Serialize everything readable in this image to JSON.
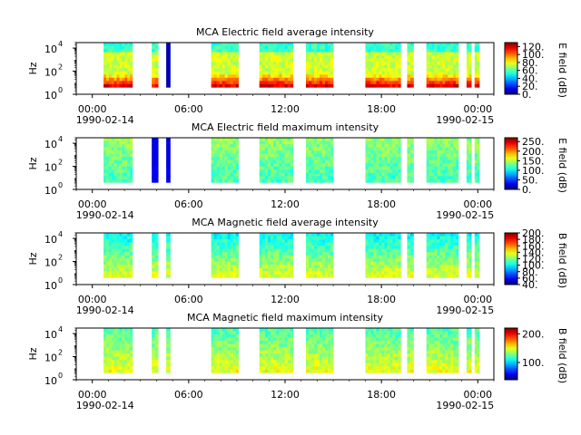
{
  "colors": {
    "axis": "#000000",
    "background": "#ffffff"
  },
  "chart_data": [
    {
      "type": "heatmap",
      "title": "MCA  Electric field average intensity",
      "ylabel": "Hz",
      "yscale": "log",
      "ylim": [
        1,
        30000
      ],
      "ytick_labels": [
        "10",
        "10",
        "10"
      ],
      "ytick_exponents": [
        "0",
        "2",
        "4"
      ],
      "xtick_labels": [
        "00:00",
        "06:00",
        "12:00",
        "18:00",
        "00:00"
      ],
      "x_start_date": "1990-02-14",
      "x_end_date": "1990-02-15",
      "colorbar_label": "E field (dB)",
      "colorbar_range": [
        0,
        130
      ],
      "colorbar_ticks": [
        "0.",
        "20.",
        "40.",
        "60.",
        "80.",
        "100.",
        "120."
      ],
      "colormap": "jet",
      "data_intervals_hours": [
        [
          0.7,
          2.5
        ],
        [
          3.7,
          4.1
        ],
        [
          4.6,
          4.85
        ],
        [
          7.4,
          9.1
        ],
        [
          10.4,
          12.5
        ],
        [
          13.3,
          15.0
        ],
        [
          17.0,
          19.2
        ],
        [
          19.6,
          20.0
        ],
        [
          20.8,
          22.8
        ],
        [
          23.3,
          23.6
        ],
        [
          23.8,
          24.1
        ]
      ],
      "dominant_levels": [
        110,
        75,
        65
      ]
    },
    {
      "type": "heatmap",
      "title": "MCA  Electric field maximum intensity",
      "ylabel": "Hz",
      "yscale": "log",
      "ylim": [
        1,
        30000
      ],
      "ytick_labels": [
        "10",
        "10",
        "10"
      ],
      "ytick_exponents": [
        "0",
        "2",
        "4"
      ],
      "xtick_labels": [
        "00:00",
        "06:00",
        "12:00",
        "18:00",
        "00:00"
      ],
      "x_start_date": "1990-02-14",
      "x_end_date": "1990-02-15",
      "colorbar_label": "E field (dB)",
      "colorbar_range": [
        0,
        270
      ],
      "colorbar_ticks": [
        "0.",
        "50.",
        "100.",
        "150.",
        "200.",
        "250."
      ],
      "colormap": "jet",
      "data_intervals_hours": [
        [
          0.7,
          2.5
        ],
        [
          3.7,
          4.1
        ],
        [
          4.6,
          4.85
        ],
        [
          7.4,
          9.1
        ],
        [
          10.4,
          12.5
        ],
        [
          13.3,
          15.0
        ],
        [
          17.0,
          19.2
        ],
        [
          19.6,
          20.0
        ],
        [
          20.8,
          22.8
        ],
        [
          23.3,
          23.6
        ],
        [
          23.8,
          24.1
        ]
      ],
      "dominant_levels": [
        140,
        130,
        120
      ]
    },
    {
      "type": "heatmap",
      "title": "MCA  Magnetic field average intensity",
      "ylabel": "Hz",
      "yscale": "log",
      "ylim": [
        1,
        30000
      ],
      "ytick_labels": [
        "10",
        "10",
        "10"
      ],
      "ytick_exponents": [
        "0",
        "2",
        "4"
      ],
      "xtick_labels": [
        "00:00",
        "06:00",
        "12:00",
        "18:00",
        "00:00"
      ],
      "x_start_date": "1990-02-14",
      "x_end_date": "1990-02-15",
      "colorbar_label": "B field (dB)",
      "colorbar_range": [
        40,
        200
      ],
      "colorbar_ticks": [
        "40.",
        "60.",
        "80.",
        "100.",
        "120.",
        "140.",
        "160.",
        "180.",
        "200."
      ],
      "colormap": "jet",
      "data_intervals_hours": [
        [
          0.7,
          2.5
        ],
        [
          3.7,
          4.1
        ],
        [
          4.6,
          4.85
        ],
        [
          7.4,
          9.1
        ],
        [
          10.4,
          12.5
        ],
        [
          13.3,
          15.0
        ],
        [
          17.0,
          19.2
        ],
        [
          19.6,
          20.0
        ],
        [
          20.8,
          22.8
        ],
        [
          23.3,
          23.6
        ],
        [
          23.8,
          24.1
        ]
      ],
      "dominant_levels": [
        100,
        120,
        135
      ]
    },
    {
      "type": "heatmap",
      "title": "MCA  Magnetic field maximum intensity",
      "ylabel": "Hz",
      "yscale": "log",
      "ylim": [
        1,
        30000
      ],
      "ytick_labels": [
        "10",
        "10",
        "10"
      ],
      "ytick_exponents": [
        "0",
        "2",
        "4"
      ],
      "xtick_labels": [
        "00:00",
        "06:00",
        "12:00",
        "18:00",
        "00:00"
      ],
      "x_start_date": "1990-02-14",
      "x_end_date": "1990-02-15",
      "colorbar_label": "B field (dB)",
      "colorbar_range": [
        40,
        220
      ],
      "colorbar_ticks": [
        "100.",
        "200."
      ],
      "colormap": "jet",
      "data_intervals_hours": [
        [
          0.7,
          2.5
        ],
        [
          3.7,
          4.1
        ],
        [
          4.6,
          4.85
        ],
        [
          7.4,
          9.1
        ],
        [
          10.4,
          12.5
        ],
        [
          13.3,
          15.0
        ],
        [
          17.0,
          19.2
        ],
        [
          19.6,
          20.0
        ],
        [
          20.8,
          22.8
        ],
        [
          23.3,
          23.6
        ],
        [
          23.8,
          24.1
        ]
      ],
      "dominant_levels": [
        120,
        135,
        150
      ]
    }
  ]
}
